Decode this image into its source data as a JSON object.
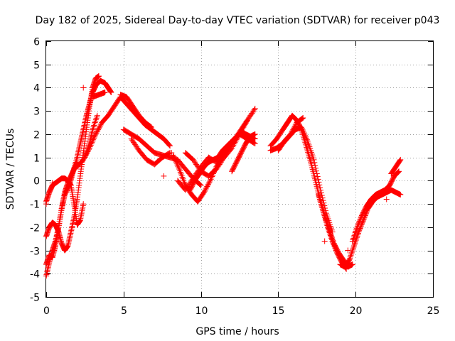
{
  "chart_data": {
    "type": "scatter",
    "title": "Day 182 of 2025, Sidereal Day-to-day VTEC variation (SDTVAR) for receiver p043",
    "xlabel": "GPS time / hours",
    "ylabel": "SDTVAR / TECUs",
    "xlim": [
      0,
      25
    ],
    "ylim": [
      -5,
      6
    ],
    "xticks": [
      0,
      5,
      10,
      15,
      20,
      25
    ],
    "yticks": [
      -5,
      -4,
      -3,
      -2,
      -1,
      0,
      1,
      2,
      3,
      4,
      5,
      6
    ],
    "grid": true,
    "marker": "plus",
    "color": "#ff0000",
    "series": [
      {
        "name": "SDTVAR",
        "tracks": [
          {
            "x": [
              0.0,
              0.2,
              0.4,
              0.6,
              0.8,
              1.0,
              1.2,
              1.5,
              1.7,
              2.0,
              2.2,
              2.4,
              2.6,
              2.8,
              3.0,
              3.2,
              3.5,
              3.8,
              4.0,
              4.2
            ],
            "y": [
              -4.1,
              -3.5,
              -3.0,
              -2.6,
              -2.0,
              -1.2,
              -0.6,
              -0.2,
              0.3,
              1.0,
              1.6,
              2.2,
              2.8,
              3.3,
              3.8,
              4.1,
              4.3,
              4.2,
              4.0,
              3.8
            ]
          },
          {
            "x": [
              0.0,
              0.2,
              0.4,
              0.6,
              0.8,
              1.0,
              1.2,
              1.4,
              1.6,
              1.8,
              2.0,
              2.2,
              2.4,
              2.6,
              2.8,
              3.0,
              3.2,
              3.4
            ],
            "y": [
              -2.4,
              -2.0,
              -1.8,
              -1.9,
              -2.2,
              -2.7,
              -3.0,
              -2.8,
              -2.2,
              -1.6,
              -0.8,
              0.2,
              1.2,
              2.2,
              3.2,
              4.0,
              4.4,
              4.5
            ]
          },
          {
            "x": [
              0.0,
              0.2,
              0.4,
              0.6,
              0.8,
              1.0,
              1.2,
              1.4,
              1.6,
              1.8,
              2.0,
              2.2,
              2.4
            ],
            "y": [
              -0.9,
              -0.5,
              -0.2,
              -0.1,
              0.0,
              0.1,
              0.1,
              0.0,
              -0.2,
              -1.0,
              -1.9,
              -1.7,
              -1.0
            ]
          },
          {
            "x": [
              0.0,
              0.2,
              0.4,
              0.6,
              0.8,
              1.0,
              1.2,
              1.4,
              1.6,
              1.8,
              2.0
            ],
            "y": [
              -3.6,
              -3.2,
              -3.3,
              -2.8,
              -2.0,
              -1.2,
              -0.5,
              -0.1,
              0.2,
              0.5,
              0.8
            ]
          },
          {
            "x": [
              2.0,
              2.4,
              2.8,
              3.2,
              3.6,
              4.0,
              4.4,
              4.8,
              5.2,
              5.6,
              6.0,
              6.4,
              6.8,
              7.2,
              7.6,
              8.0
            ],
            "y": [
              0.6,
              0.9,
              1.4,
              2.0,
              2.5,
              2.8,
              3.2,
              3.6,
              3.3,
              3.0,
              2.7,
              2.4,
              2.2,
              2.0,
              1.8,
              1.5
            ]
          },
          {
            "x": [
              2.5,
              2.8,
              3.0,
              3.3
            ],
            "y": [
              1.0,
              1.6,
              2.2,
              2.8
            ]
          },
          {
            "x": [
              3.0,
              3.4,
              3.8
            ],
            "y": [
              3.6,
              3.7,
              3.8
            ]
          },
          {
            "x": [
              5.0,
              5.5,
              6.0,
              6.5,
              7.0,
              7.5,
              8.0,
              8.5,
              9.0,
              9.5,
              10.0
            ],
            "y": [
              2.2,
              2.0,
              1.8,
              1.5,
              1.2,
              1.1,
              1.0,
              0.9,
              0.5,
              0.1,
              -0.2
            ]
          },
          {
            "x": [
              5.5,
              6.0,
              6.5,
              7.0,
              7.5,
              8.0
            ],
            "y": [
              1.8,
              1.3,
              0.9,
              0.7,
              1.0,
              1.2
            ]
          },
          {
            "x": [
              4.8,
              5.2,
              5.6,
              6.0,
              6.4,
              6.8
            ],
            "y": [
              3.7,
              3.6,
              3.2,
              2.8,
              2.5,
              2.3
            ]
          },
          {
            "x": [
              8.2,
              8.6,
              9.0,
              9.4,
              9.8,
              10.2,
              10.6,
              11.0,
              11.4,
              11.8,
              12.2,
              12.6,
              13.0
            ],
            "y": [
              1.1,
              0.5,
              -0.2,
              -0.6,
              -0.9,
              -0.5,
              0.0,
              0.6,
              1.0,
              1.4,
              1.8,
              2.2,
              2.6
            ]
          },
          {
            "x": [
              8.5,
              9.0,
              9.5,
              10.0,
              10.5,
              11.0,
              11.5,
              12.0,
              12.5,
              13.0,
              13.5
            ],
            "y": [
              0.0,
              -0.4,
              0.1,
              0.6,
              1.0,
              0.8,
              1.2,
              1.6,
              2.0,
              1.8,
              1.6
            ]
          },
          {
            "x": [
              9.0,
              9.5,
              10.0,
              10.5,
              11.0,
              11.5,
              12.0,
              12.5,
              13.0,
              13.5
            ],
            "y": [
              1.2,
              0.9,
              0.4,
              0.2,
              0.5,
              1.0,
              1.4,
              2.0,
              2.6,
              3.1
            ]
          },
          {
            "x": [
              9.3,
              9.6,
              9.9,
              10.2,
              10.5,
              10.8,
              11.1,
              11.4,
              11.7,
              12.0,
              12.3,
              12.6,
              12.9,
              13.2,
              13.5
            ],
            "y": [
              -0.4,
              0.0,
              0.3,
              0.6,
              0.8,
              0.9,
              1.0,
              1.3,
              1.5,
              1.7,
              1.9,
              2.1,
              2.0,
              1.9,
              1.8
            ]
          },
          {
            "x": [
              12.0,
              12.3,
              12.6,
              12.9,
              13.2,
              13.5
            ],
            "y": [
              0.4,
              0.8,
              1.2,
              1.6,
              1.9,
              2.0
            ]
          },
          {
            "x": [
              14.5,
              14.9,
              15.3,
              15.6,
              15.9,
              16.2,
              16.5,
              16.8,
              17.1,
              17.4,
              17.7,
              18.0,
              18.3,
              18.6,
              18.9,
              19.2,
              19.5,
              19.8
            ],
            "y": [
              1.5,
              1.8,
              2.2,
              2.5,
              2.8,
              2.6,
              2.2,
              1.5,
              0.8,
              0.0,
              -0.8,
              -1.5,
              -2.1,
              -2.7,
              -3.1,
              -3.4,
              -3.7,
              -3.6
            ]
          },
          {
            "x": [
              14.5,
              14.9,
              15.3,
              15.7,
              16.1,
              16.5,
              16.9,
              17.3,
              17.7,
              18.1,
              18.5
            ],
            "y": [
              1.3,
              1.4,
              1.6,
              1.9,
              2.2,
              2.3,
              1.7,
              0.9,
              -0.3,
              -1.4,
              -2.2
            ]
          },
          {
            "x": [
              15.0,
              15.4,
              15.8,
              16.2,
              16.6
            ],
            "y": [
              1.3,
              1.7,
              2.0,
              2.5,
              2.7
            ]
          },
          {
            "x": [
              17.6,
              17.9,
              18.2,
              18.5,
              18.8,
              19.1,
              19.4
            ],
            "y": [
              -0.6,
              -1.3,
              -2.0,
              -2.6,
              -3.1,
              -3.5,
              -3.8
            ]
          },
          {
            "x": [
              19.0,
              19.3,
              19.6,
              19.9,
              20.2,
              20.5,
              20.8,
              21.1,
              21.4,
              21.7,
              22.0,
              22.3,
              22.6,
              22.9
            ],
            "y": [
              -3.6,
              -3.7,
              -3.4,
              -2.8,
              -2.2,
              -1.7,
              -1.2,
              -0.9,
              -0.7,
              -0.6,
              -0.5,
              -0.4,
              -0.5,
              -0.6
            ]
          },
          {
            "x": [
              19.8,
              20.1,
              20.4,
              20.7,
              21.0,
              21.3,
              21.6,
              21.9,
              22.2,
              22.5,
              22.8
            ],
            "y": [
              -2.6,
              -2.0,
              -1.5,
              -1.1,
              -0.8,
              -0.6,
              -0.5,
              -0.4,
              -0.2,
              0.2,
              0.4
            ]
          },
          {
            "x": [
              22.3,
              22.6,
              22.9
            ],
            "y": [
              0.3,
              0.6,
              0.9
            ]
          }
        ],
        "outliers": {
          "x": [
            0.0,
            0.4,
            2.4,
            5.8,
            7.6,
            8.1,
            18.0,
            19.5,
            20.0,
            22.0
          ],
          "y": [
            -1.0,
            -0.1,
            4.0,
            2.9,
            0.2,
            1.2,
            -2.6,
            -3.0,
            -2.2,
            -0.8
          ]
        }
      }
    ]
  }
}
